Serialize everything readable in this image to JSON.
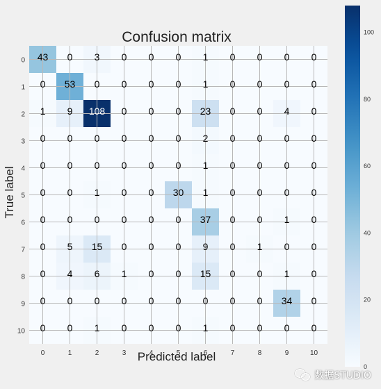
{
  "chart_data": {
    "type": "heatmap",
    "title": "Confusion matrix",
    "xlabel": "Predicted label",
    "ylabel": "True label",
    "x_tick_labels": [
      "0",
      "1",
      "2",
      "3",
      "4",
      "5",
      "6",
      "7",
      "8",
      "9",
      "10"
    ],
    "y_tick_labels": [
      "0",
      "1",
      "2",
      "3",
      "4",
      "5",
      "6",
      "7",
      "8",
      "9",
      "10"
    ],
    "matrix": [
      [
        43,
        0,
        3,
        0,
        0,
        0,
        1,
        0,
        0,
        0,
        0
      ],
      [
        0,
        53,
        0,
        0,
        0,
        0,
        1,
        0,
        0,
        0,
        0
      ],
      [
        1,
        9,
        108,
        0,
        0,
        0,
        23,
        0,
        0,
        4,
        0
      ],
      [
        0,
        0,
        0,
        0,
        0,
        0,
        2,
        0,
        0,
        0,
        0
      ],
      [
        0,
        0,
        0,
        0,
        0,
        0,
        1,
        0,
        0,
        0,
        0
      ],
      [
        0,
        0,
        1,
        0,
        0,
        30,
        1,
        0,
        0,
        0,
        0
      ],
      [
        0,
        0,
        0,
        0,
        0,
        0,
        37,
        0,
        0,
        1,
        0
      ],
      [
        0,
        5,
        15,
        0,
        0,
        0,
        9,
        0,
        1,
        0,
        0
      ],
      [
        0,
        4,
        6,
        1,
        0,
        0,
        15,
        0,
        0,
        1,
        0
      ],
      [
        0,
        0,
        0,
        0,
        0,
        0,
        0,
        0,
        0,
        34,
        0
      ],
      [
        0,
        0,
        1,
        0,
        0,
        0,
        1,
        0,
        0,
        0,
        0
      ]
    ],
    "colormap": "Blues",
    "color_range": [
      0,
      108
    ],
    "colorbar_ticks": [
      0,
      20,
      40,
      60,
      80,
      100
    ],
    "grid": true
  },
  "watermark": {
    "text": "数据STUDIO",
    "icon": "wechat-icon"
  }
}
